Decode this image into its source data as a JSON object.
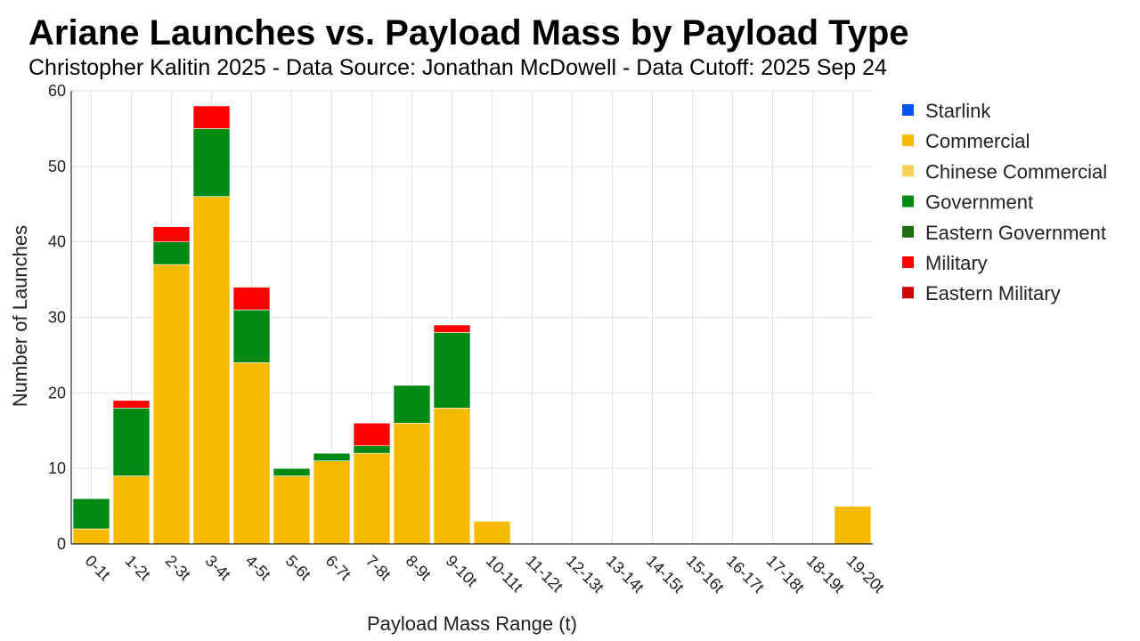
{
  "chart_data": {
    "type": "bar",
    "stacked": true,
    "title": "Ariane Launches vs. Payload Mass by Payload Type",
    "subtitle": "Christopher Kalitin 2025 - Data Source: Jonathan McDowell - Data Cutoff: 2025 Sep 24",
    "xlabel": "Payload Mass Range (t)",
    "ylabel": "Number of Launches",
    "ylim": [
      0,
      60
    ],
    "yticks": [
      0,
      10,
      20,
      30,
      40,
      50,
      60
    ],
    "grid": true,
    "legend_position": "right",
    "categories": [
      "0-1t",
      "1-2t",
      "2-3t",
      "3-4t",
      "4-5t",
      "5-6t",
      "6-7t",
      "7-8t",
      "8-9t",
      "9-10t",
      "10-11t",
      "11-12t",
      "12-13t",
      "13-14t",
      "14-15t",
      "15-16t",
      "16-17t",
      "17-18t",
      "18-19t",
      "19-20t"
    ],
    "series": [
      {
        "name": "Starlink",
        "color": "#0055ee",
        "values": [
          0,
          0,
          0,
          0,
          0,
          0,
          0,
          0,
          0,
          0,
          0,
          0,
          0,
          0,
          0,
          0,
          0,
          0,
          0,
          0
        ]
      },
      {
        "name": "Commercial",
        "color": "#f9bb00",
        "values": [
          2,
          9,
          37,
          46,
          24,
          9,
          11,
          12,
          16,
          18,
          3,
          0,
          0,
          0,
          0,
          0,
          0,
          0,
          0,
          5
        ]
      },
      {
        "name": "Chinese Commercial",
        "color": "#f6d35a",
        "values": [
          0,
          0,
          0,
          0,
          0,
          0,
          0,
          0,
          0,
          0,
          0,
          0,
          0,
          0,
          0,
          0,
          0,
          0,
          0,
          0
        ]
      },
      {
        "name": "Government",
        "color": "#008a14",
        "values": [
          4,
          9,
          3,
          9,
          7,
          1,
          1,
          1,
          5,
          10,
          0,
          0,
          0,
          0,
          0,
          0,
          0,
          0,
          0,
          0
        ]
      },
      {
        "name": "Eastern Government",
        "color": "#1e6b12",
        "values": [
          0,
          0,
          0,
          0,
          0,
          0,
          0,
          0,
          0,
          0,
          0,
          0,
          0,
          0,
          0,
          0,
          0,
          0,
          0,
          0
        ]
      },
      {
        "name": "Military",
        "color": "#ff0000",
        "values": [
          0,
          1,
          2,
          3,
          3,
          0,
          0,
          3,
          0,
          1,
          0,
          0,
          0,
          0,
          0,
          0,
          0,
          0,
          0,
          0
        ]
      },
      {
        "name": "Eastern Military",
        "color": "#cc0000",
        "values": [
          0,
          0,
          0,
          0,
          0,
          0,
          0,
          0,
          0,
          0,
          0,
          0,
          0,
          0,
          0,
          0,
          0,
          0,
          0,
          0
        ]
      }
    ]
  }
}
